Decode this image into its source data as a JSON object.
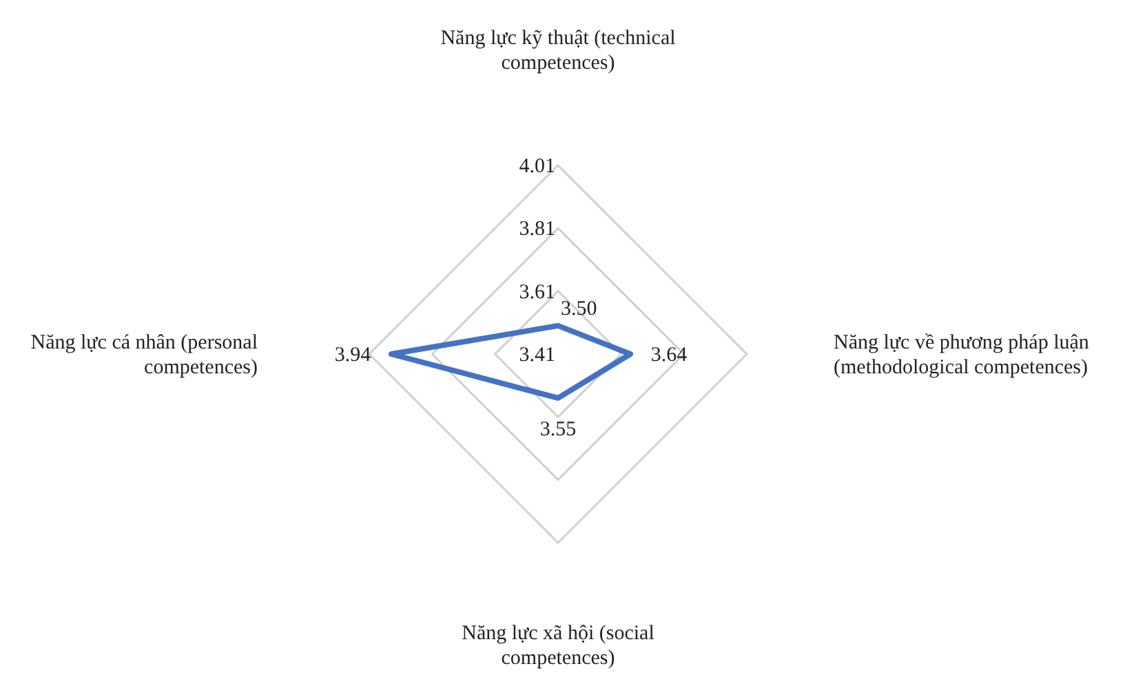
{
  "chart_data": {
    "type": "radar",
    "categories": [
      "Năng lực kỹ thuật (technical competences)",
      "Năng lực về phương pháp luận (methodological competences)",
      "Năng lực xã hội (social competences)",
      "Năng lực cá nhân (personal competences)"
    ],
    "series": [
      {
        "color": "#4472c4",
        "values": [
          3.5,
          3.64,
          3.55,
          3.94
        ],
        "value_labels": [
          "3.50",
          "3.64",
          "3.55",
          "3.94"
        ]
      }
    ],
    "ylim": [
      3.41,
      4.01
    ],
    "yticks": [
      3.41,
      3.61,
      3.81,
      4.01
    ],
    "grid": true,
    "legend": false
  }
}
